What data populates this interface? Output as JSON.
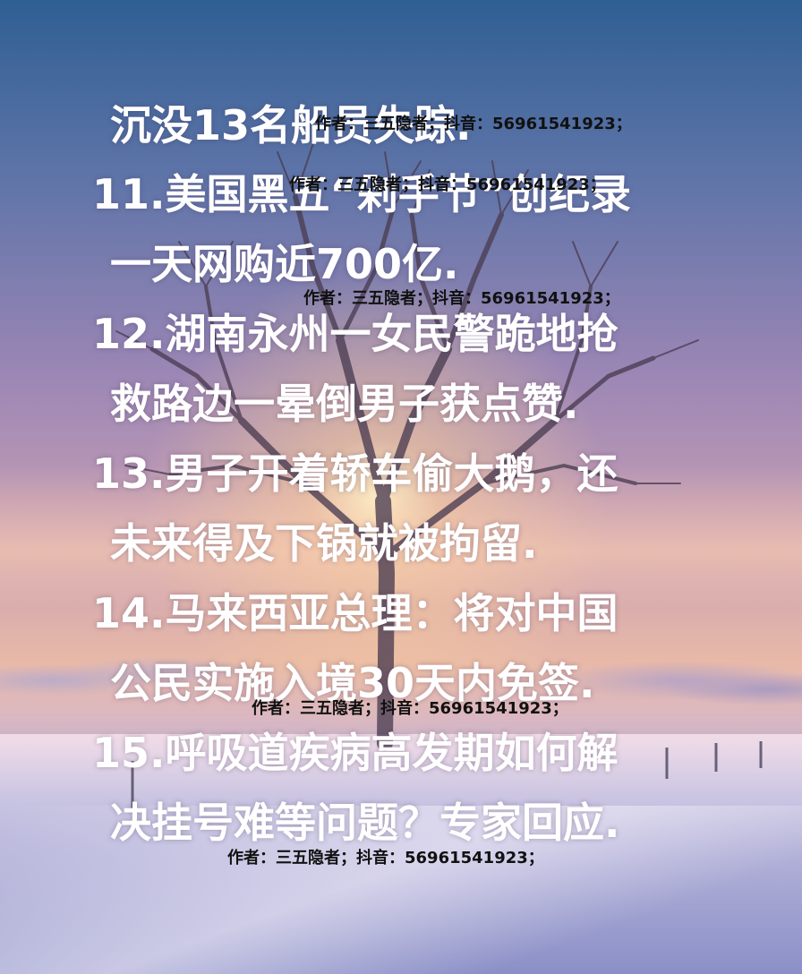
{
  "lines": [
    "沉没13名船员失踪.",
    "11.美国黑五“剁手节”创纪录",
    "一天网购近700亿.",
    "12.湖南永州一女民警跪地抢",
    "救路边一晕倒男子获点赞.",
    "13.男子开着轿车偷大鹅，还",
    "未来得及下锅就被拘留.",
    "14.马来西亚总理：将对中国",
    "公民实施入境30天内免签.",
    "15.呼吸道疾病高发期如何解",
    "决挂号难等问题？专家回应."
  ],
  "watermark": "作者：三五隐者；抖音：56961541923；",
  "colors": {
    "text": "#ffffff",
    "watermark": "#111111"
  }
}
